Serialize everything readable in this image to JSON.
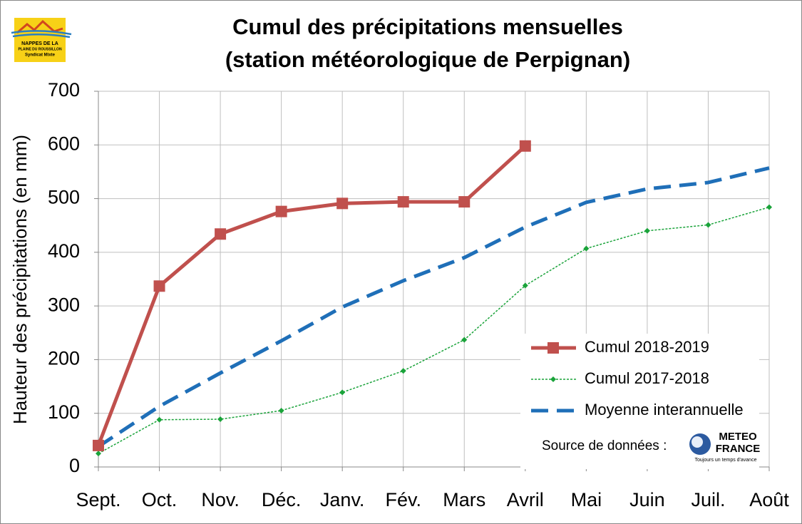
{
  "chart_data": {
    "type": "line",
    "title": "Cumul des précipitations mensuelles",
    "subtitle": "(station météorologique de Perpignan)",
    "y_label": "Hauteur des précipitations (en mm)",
    "categories": [
      "Sept.",
      "Oct.",
      "Nov.",
      "Déc.",
      "Janv.",
      "Fév.",
      "Mars",
      "Avril",
      "Mai",
      "Juin",
      "Juil.",
      "Août"
    ],
    "series": [
      {
        "name": "Cumul 2018-2019",
        "color": "#c0504d",
        "style": "solid",
        "marker": "square",
        "values": [
          40,
          337,
          434,
          476,
          491,
          494,
          494,
          598,
          null,
          null,
          null,
          null
        ]
      },
      {
        "name": "Cumul 2017-2018",
        "color": "#1aa33a",
        "style": "dotted",
        "marker": "diamond",
        "values": [
          25,
          88,
          89,
          105,
          139,
          179,
          237,
          338,
          407,
          440,
          451,
          484
        ]
      },
      {
        "name": "Moyenne interannuelle",
        "color": "#1f6fb8",
        "style": "dashed",
        "marker": "none",
        "values": [
          38,
          113,
          175,
          235,
          298,
          347,
          390,
          447,
          493,
          518,
          530,
          557
        ]
      }
    ],
    "ylim": [
      0,
      700
    ],
    "yticks": [
      0,
      100,
      200,
      300,
      400,
      500,
      600,
      700
    ],
    "grid": true,
    "legend": "lower right",
    "source_label": "Source de données :",
    "source_logo": {
      "line1": "METEO",
      "line2": "FRANCE",
      "tagline": "Toujours un temps d'avance"
    },
    "org_logo": {
      "line1": "NAPPES DE LA",
      "line2": "PLAINE DU ROUSSILLON",
      "line3": "Syndicat Mixte"
    }
  }
}
